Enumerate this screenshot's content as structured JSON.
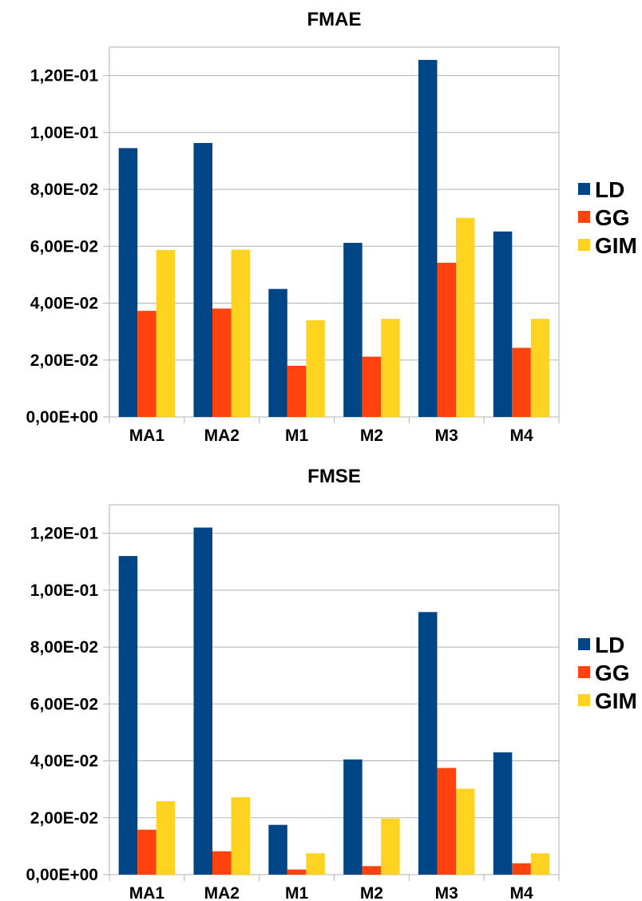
{
  "chart_data": [
    {
      "type": "bar",
      "title": "FMAE",
      "categories": [
        "MA1",
        "MA2",
        "M1",
        "M2",
        "M3",
        "M4"
      ],
      "series": [
        {
          "name": "LD",
          "values": [
            0.0945,
            0.0963,
            0.045,
            0.0612,
            0.1255,
            0.0652
          ]
        },
        {
          "name": "GG",
          "values": [
            0.0373,
            0.0381,
            0.018,
            0.0212,
            0.0542,
            0.0243
          ]
        },
        {
          "name": "GIM",
          "values": [
            0.0587,
            0.0588,
            0.034,
            0.0345,
            0.07,
            0.0345
          ]
        }
      ],
      "ylim": [
        0,
        0.13
      ],
      "ytick_values": [
        0,
        0.02,
        0.04,
        0.06,
        0.08,
        0.1,
        0.12
      ],
      "ytick_labels": [
        "0,00E+00",
        "2,00E-02",
        "4,00E-02",
        "6,00E-02",
        "8,00E-02",
        "1,00E-01",
        "1,20E-01"
      ],
      "grid": true,
      "legend_position": "right"
    },
    {
      "type": "bar",
      "title": "FMSE",
      "categories": [
        "MA1",
        "MA2",
        "M1",
        "M2",
        "M3",
        "M4"
      ],
      "series": [
        {
          "name": "LD",
          "values": [
            0.112,
            0.122,
            0.0175,
            0.0405,
            0.0923,
            0.043
          ]
        },
        {
          "name": "GG",
          "values": [
            0.0158,
            0.0082,
            0.0018,
            0.003,
            0.0375,
            0.004
          ]
        },
        {
          "name": "GIM",
          "values": [
            0.0258,
            0.0272,
            0.0075,
            0.0197,
            0.0302,
            0.0075
          ]
        }
      ],
      "ylim": [
        0,
        0.13
      ],
      "ytick_values": [
        0,
        0.02,
        0.04,
        0.06,
        0.08,
        0.1,
        0.12
      ],
      "ytick_labels": [
        "0,00E+00",
        "2,00E-02",
        "4,00E-02",
        "6,00E-02",
        "8,00E-02",
        "1,00E-01",
        "1,20E-01"
      ],
      "grid": true,
      "legend_position": "right"
    }
  ],
  "colors": {
    "LD": "#004586",
    "GG": "#ff420e",
    "GIM": "#ffd320"
  }
}
